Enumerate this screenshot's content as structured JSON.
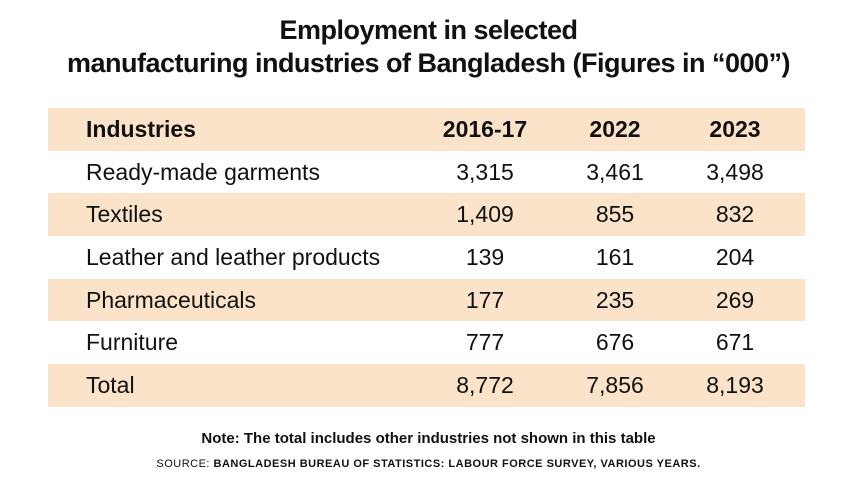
{
  "chart_data": {
    "type": "table",
    "title_line1": "Employment in selected",
    "title_line2": "manufacturing industries of Bangladesh (Figures in “000”)",
    "columns": [
      "Industries",
      "2016-17",
      "2022",
      "2023"
    ],
    "rows": [
      {
        "industry": "Ready-made garments",
        "values": [
          "3,315",
          "3,461",
          "3,498"
        ]
      },
      {
        "industry": "Textiles",
        "values": [
          "1,409",
          "855",
          "832"
        ]
      },
      {
        "industry": "Leather and leather products",
        "values": [
          "139",
          "161",
          "204"
        ]
      },
      {
        "industry": "Pharmaceuticals",
        "values": [
          "177",
          "235",
          "269"
        ]
      },
      {
        "industry": "Furniture",
        "values": [
          "777",
          "676",
          "671"
        ]
      },
      {
        "industry": "Total",
        "values": [
          "8,772",
          "7,856",
          "8,193"
        ]
      }
    ],
    "note": "Note: The total includes other industries not shown in this table",
    "source_label": "SOURCE:",
    "source_text": "BANGLADESH BUREAU OF STATISTICS: LABOUR FORCE SURVEY, VARIOUS YEARS.",
    "colors": {
      "shaded_row": "#fbe3c9",
      "text": "#111111"
    }
  }
}
